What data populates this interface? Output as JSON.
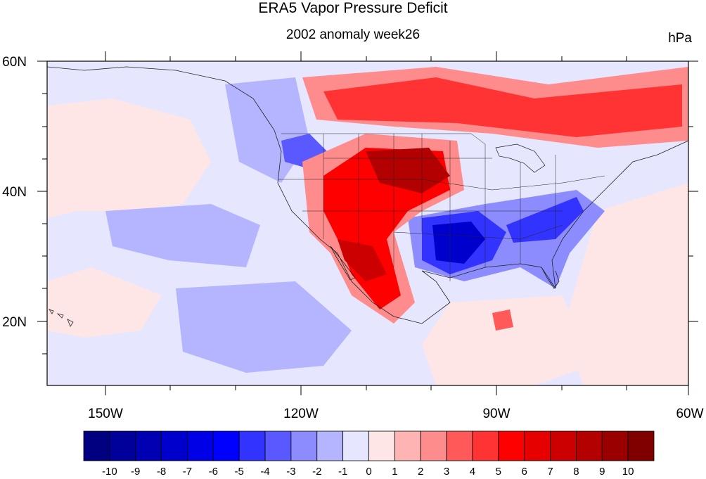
{
  "title": "ERA5 Vapor Pressure Deficit",
  "subtitle": "2002 anomaly week26",
  "units": "hPa",
  "lat_labels": [
    "60N",
    "40N",
    "20N"
  ],
  "lon_labels": [
    "150W",
    "120W",
    "90W",
    "60W"
  ],
  "colorbar": {
    "labels": [
      "-10",
      "-9",
      "-8",
      "-7",
      "-6",
      "-5",
      "-4",
      "-3",
      "-2",
      "-1",
      "0",
      "1",
      "2",
      "3",
      "4",
      "5",
      "6",
      "7",
      "8",
      "9",
      "10"
    ],
    "colors": [
      "#000080",
      "#00009a",
      "#0000b3",
      "#0000cc",
      "#0000e6",
      "#0000ff",
      "#3333ff",
      "#5959ff",
      "#8c8cff",
      "#b4b4ff",
      "#e6e6ff",
      "#ffe6e6",
      "#ffb4b4",
      "#ff8c8c",
      "#ff5959",
      "#ff3333",
      "#ff0000",
      "#e60000",
      "#cc0000",
      "#b30000",
      "#9a0000",
      "#800000"
    ]
  },
  "map": {
    "projection": "cylindrical equidistant",
    "lon_range": [
      -159,
      -60
    ],
    "lat_range": [
      10,
      60
    ],
    "region": "North America",
    "background_color": "#e6e6ff"
  }
}
